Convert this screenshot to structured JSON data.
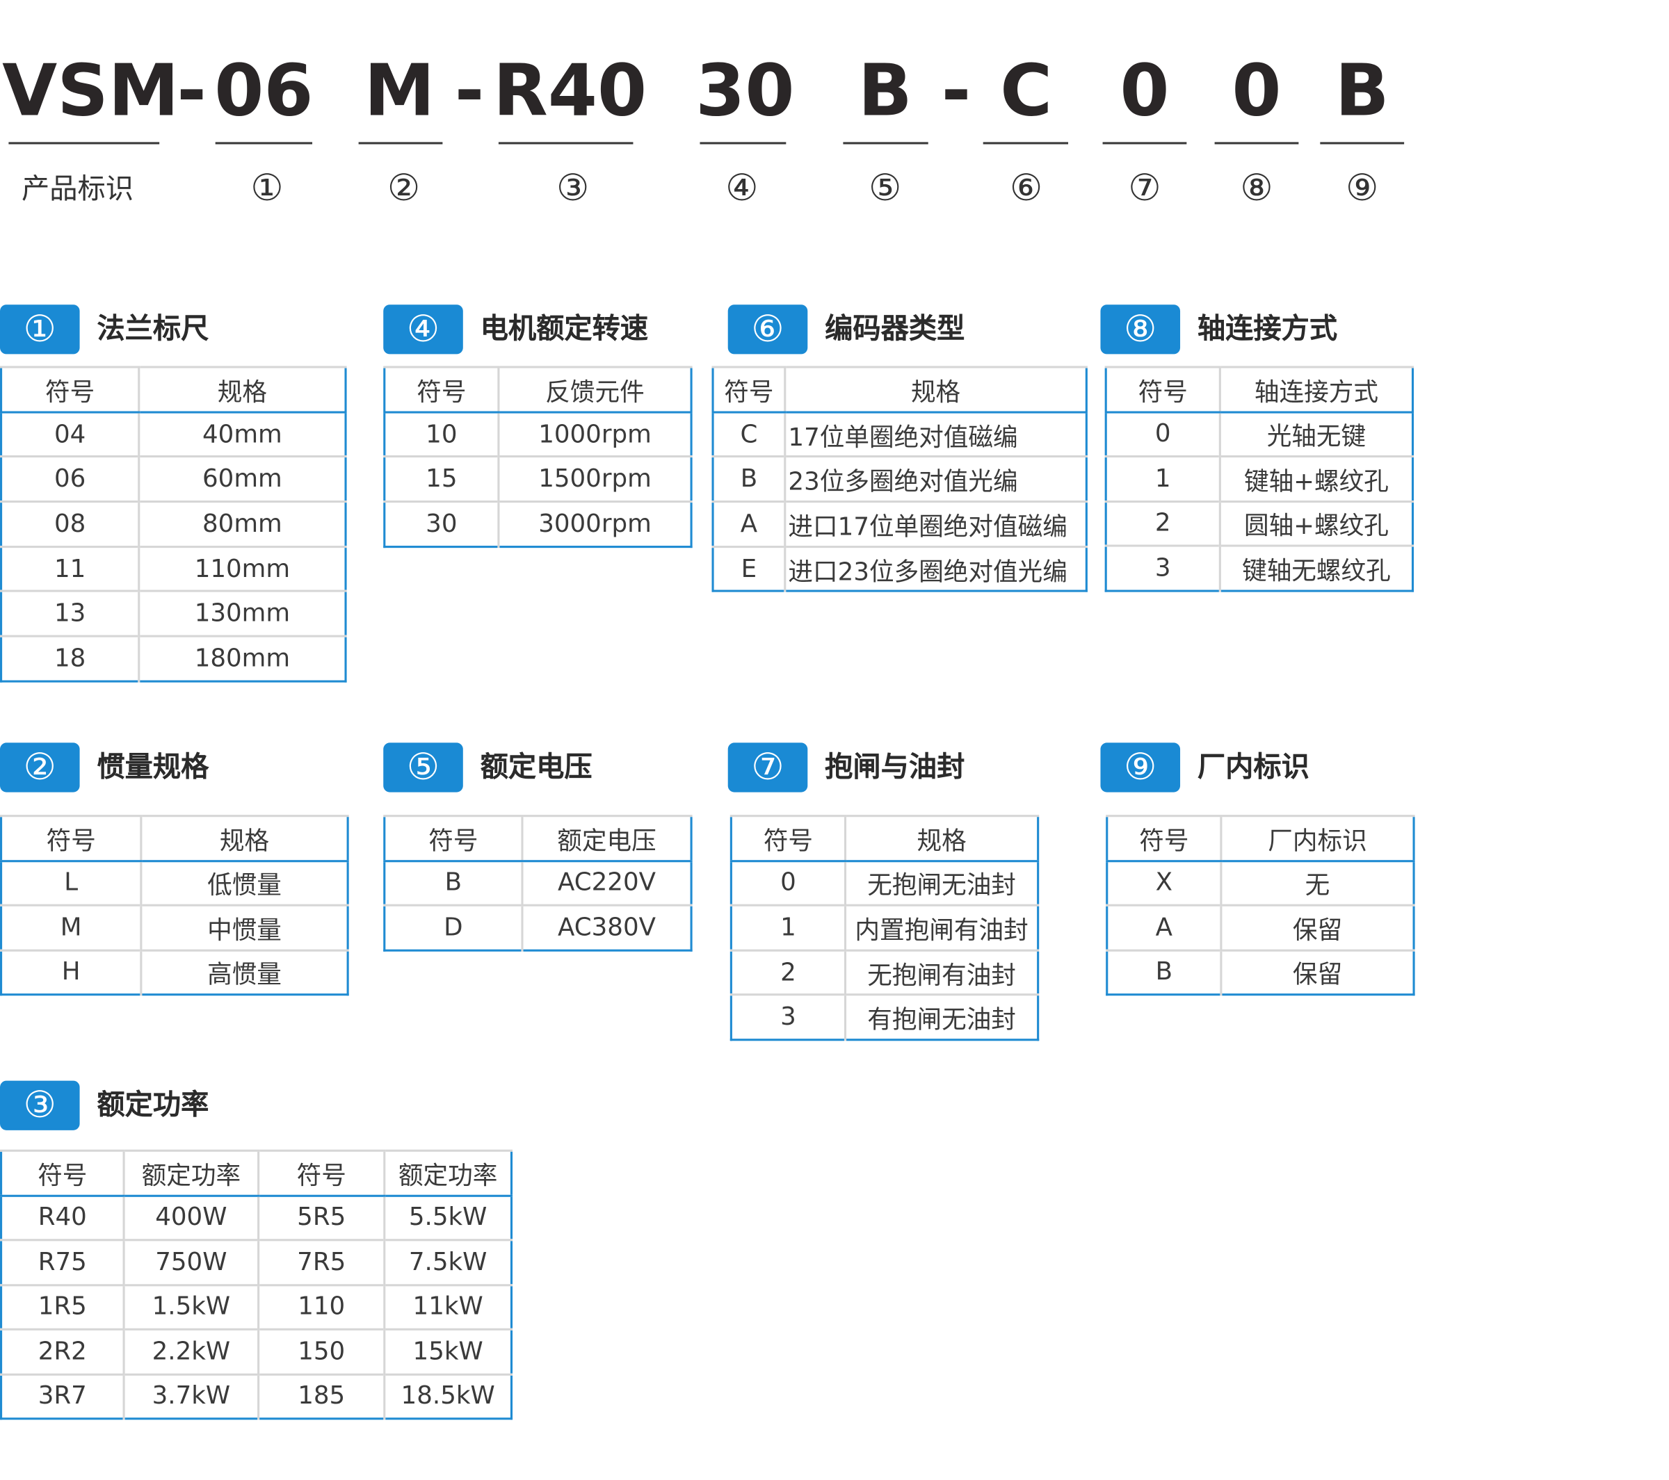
{
  "header": {
    "segments": [
      "VSM",
      "-",
      "06",
      "M",
      "-",
      "R40",
      "30",
      "B",
      "-",
      "C",
      "0",
      "0",
      "B"
    ],
    "product_label": "产品标识",
    "markers": [
      "①",
      "②",
      "③",
      "④",
      "⑤",
      "⑥",
      "⑦",
      "⑧",
      "⑨"
    ]
  },
  "colors": {
    "accent": "#1a8ad4",
    "border": "#1f8bd2",
    "divider": "#d6d6d6",
    "text": "#3a3a3a"
  },
  "sections": [
    {
      "id": "1",
      "badge": "①",
      "title": "法兰标尺",
      "headers": [
        "符号",
        "规格"
      ],
      "rows": [
        [
          "04",
          "40mm"
        ],
        [
          "06",
          "60mm"
        ],
        [
          "08",
          "80mm"
        ],
        [
          "11",
          "110mm"
        ],
        [
          "13",
          "130mm"
        ],
        [
          "18",
          "180mm"
        ]
      ]
    },
    {
      "id": "4",
      "badge": "④",
      "title": "电机额定转速",
      "headers": [
        "符号",
        "反馈元件"
      ],
      "rows": [
        [
          "10",
          "1000rpm"
        ],
        [
          "15",
          "1500rpm"
        ],
        [
          "30",
          "3000rpm"
        ]
      ]
    },
    {
      "id": "6",
      "badge": "⑥",
      "title": "编码器类型",
      "headers": [
        "符号",
        "规格"
      ],
      "rows": [
        [
          "C",
          "17位单圈绝对值磁编"
        ],
        [
          "B",
          "23位多圈绝对值光编"
        ],
        [
          "A",
          "进口17位单圈绝对值磁编"
        ],
        [
          "E",
          "进口23位多圈绝对值光编"
        ]
      ]
    },
    {
      "id": "8",
      "badge": "⑧",
      "title": "轴连接方式",
      "headers": [
        "符号",
        "轴连接方式"
      ],
      "rows": [
        [
          "0",
          "光轴无键"
        ],
        [
          "1",
          "键轴+螺纹孔"
        ],
        [
          "2",
          "圆轴+螺纹孔"
        ],
        [
          "3",
          "键轴无螺纹孔"
        ]
      ]
    },
    {
      "id": "2",
      "badge": "②",
      "title": "惯量规格",
      "headers": [
        "符号",
        "规格"
      ],
      "rows": [
        [
          "L",
          "低惯量"
        ],
        [
          "M",
          "中惯量"
        ],
        [
          "H",
          "高惯量"
        ]
      ]
    },
    {
      "id": "5",
      "badge": "⑤",
      "title": "额定电压",
      "headers": [
        "符号",
        "额定电压"
      ],
      "rows": [
        [
          "B",
          "AC220V"
        ],
        [
          "D",
          "AC380V"
        ]
      ]
    },
    {
      "id": "7",
      "badge": "⑦",
      "title": "抱闸与油封",
      "headers": [
        "符号",
        "规格"
      ],
      "rows": [
        [
          "0",
          "无抱闸无油封"
        ],
        [
          "1",
          "内置抱闸有油封"
        ],
        [
          "2",
          "无抱闸有油封"
        ],
        [
          "3",
          "有抱闸无油封"
        ]
      ]
    },
    {
      "id": "9",
      "badge": "⑨",
      "title": "厂内标识",
      "headers": [
        "符号",
        "厂内标识"
      ],
      "rows": [
        [
          "X",
          "无"
        ],
        [
          "A",
          "保留"
        ],
        [
          "B",
          "保留"
        ]
      ]
    },
    {
      "id": "3",
      "badge": "③",
      "title": "额定功率",
      "headers": [
        "符号",
        "额定功率",
        "符号",
        "额定功率"
      ],
      "rows": [
        [
          "R40",
          "400W",
          "5R5",
          "5.5kW"
        ],
        [
          "R75",
          "750W",
          "7R5",
          "7.5kW"
        ],
        [
          "1R5",
          "1.5kW",
          "110",
          "11kW"
        ],
        [
          "2R2",
          "2.2kW",
          "150",
          "15kW"
        ],
        [
          "3R7",
          "3.7kW",
          "185",
          "18.5kW"
        ]
      ]
    }
  ]
}
